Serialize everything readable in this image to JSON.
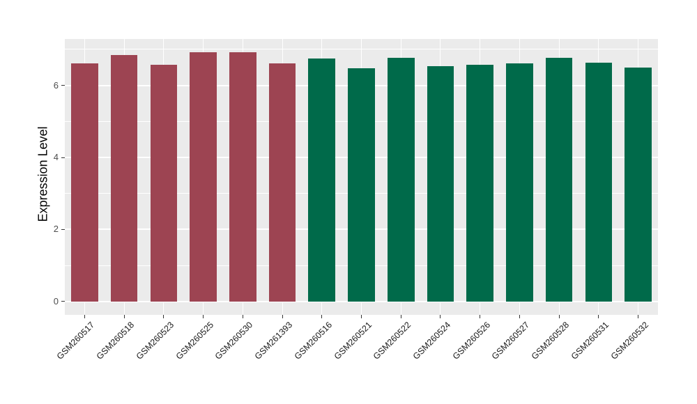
{
  "figure": {
    "background": "#FFFFFF",
    "panel_background": "#EBEBEB",
    "grid_color": "#FFFFFF",
    "tick_color": "#333333",
    "axis_text_color": "#4D4D4D"
  },
  "chart_data": {
    "type": "bar",
    "title": "",
    "xlabel": "",
    "ylabel": "Expression Level",
    "ylim": [
      -0.37,
      7.29
    ],
    "yticks": [
      0,
      2,
      4,
      6
    ],
    "ytick_labels": [
      "0",
      "2",
      "4",
      "6"
    ],
    "minor_gridlines": [
      1,
      3,
      5,
      7
    ],
    "grid": true,
    "legend_position": "none",
    "bar_width_ratio": 0.68,
    "x_label_angle_deg": 45,
    "group_colors": {
      "maroon": "#9D4452",
      "green": "#006A4A"
    },
    "categories": [
      "GSM260517",
      "GSM260518",
      "GSM260523",
      "GSM260525",
      "GSM260530",
      "GSM261393",
      "GSM260516",
      "GSM260521",
      "GSM260522",
      "GSM260524",
      "GSM260526",
      "GSM260527",
      "GSM260528",
      "GSM260531",
      "GSM260532"
    ],
    "bars": [
      {
        "label": "GSM260517",
        "value": 6.61,
        "group": "maroon"
      },
      {
        "label": "GSM260518",
        "value": 6.84,
        "group": "maroon"
      },
      {
        "label": "GSM260523",
        "value": 6.58,
        "group": "maroon"
      },
      {
        "label": "GSM260525",
        "value": 6.93,
        "group": "maroon"
      },
      {
        "label": "GSM260530",
        "value": 6.92,
        "group": "maroon"
      },
      {
        "label": "GSM261393",
        "value": 6.61,
        "group": "maroon"
      },
      {
        "label": "GSM260516",
        "value": 6.74,
        "group": "green"
      },
      {
        "label": "GSM260521",
        "value": 6.47,
        "group": "green"
      },
      {
        "label": "GSM260522",
        "value": 6.76,
        "group": "green"
      },
      {
        "label": "GSM260524",
        "value": 6.54,
        "group": "green"
      },
      {
        "label": "GSM260526",
        "value": 6.58,
        "group": "green"
      },
      {
        "label": "GSM260527",
        "value": 6.61,
        "group": "green"
      },
      {
        "label": "GSM260528",
        "value": 6.76,
        "group": "green"
      },
      {
        "label": "GSM260531",
        "value": 6.64,
        "group": "green"
      },
      {
        "label": "GSM260532",
        "value": 6.5,
        "group": "green"
      }
    ]
  }
}
